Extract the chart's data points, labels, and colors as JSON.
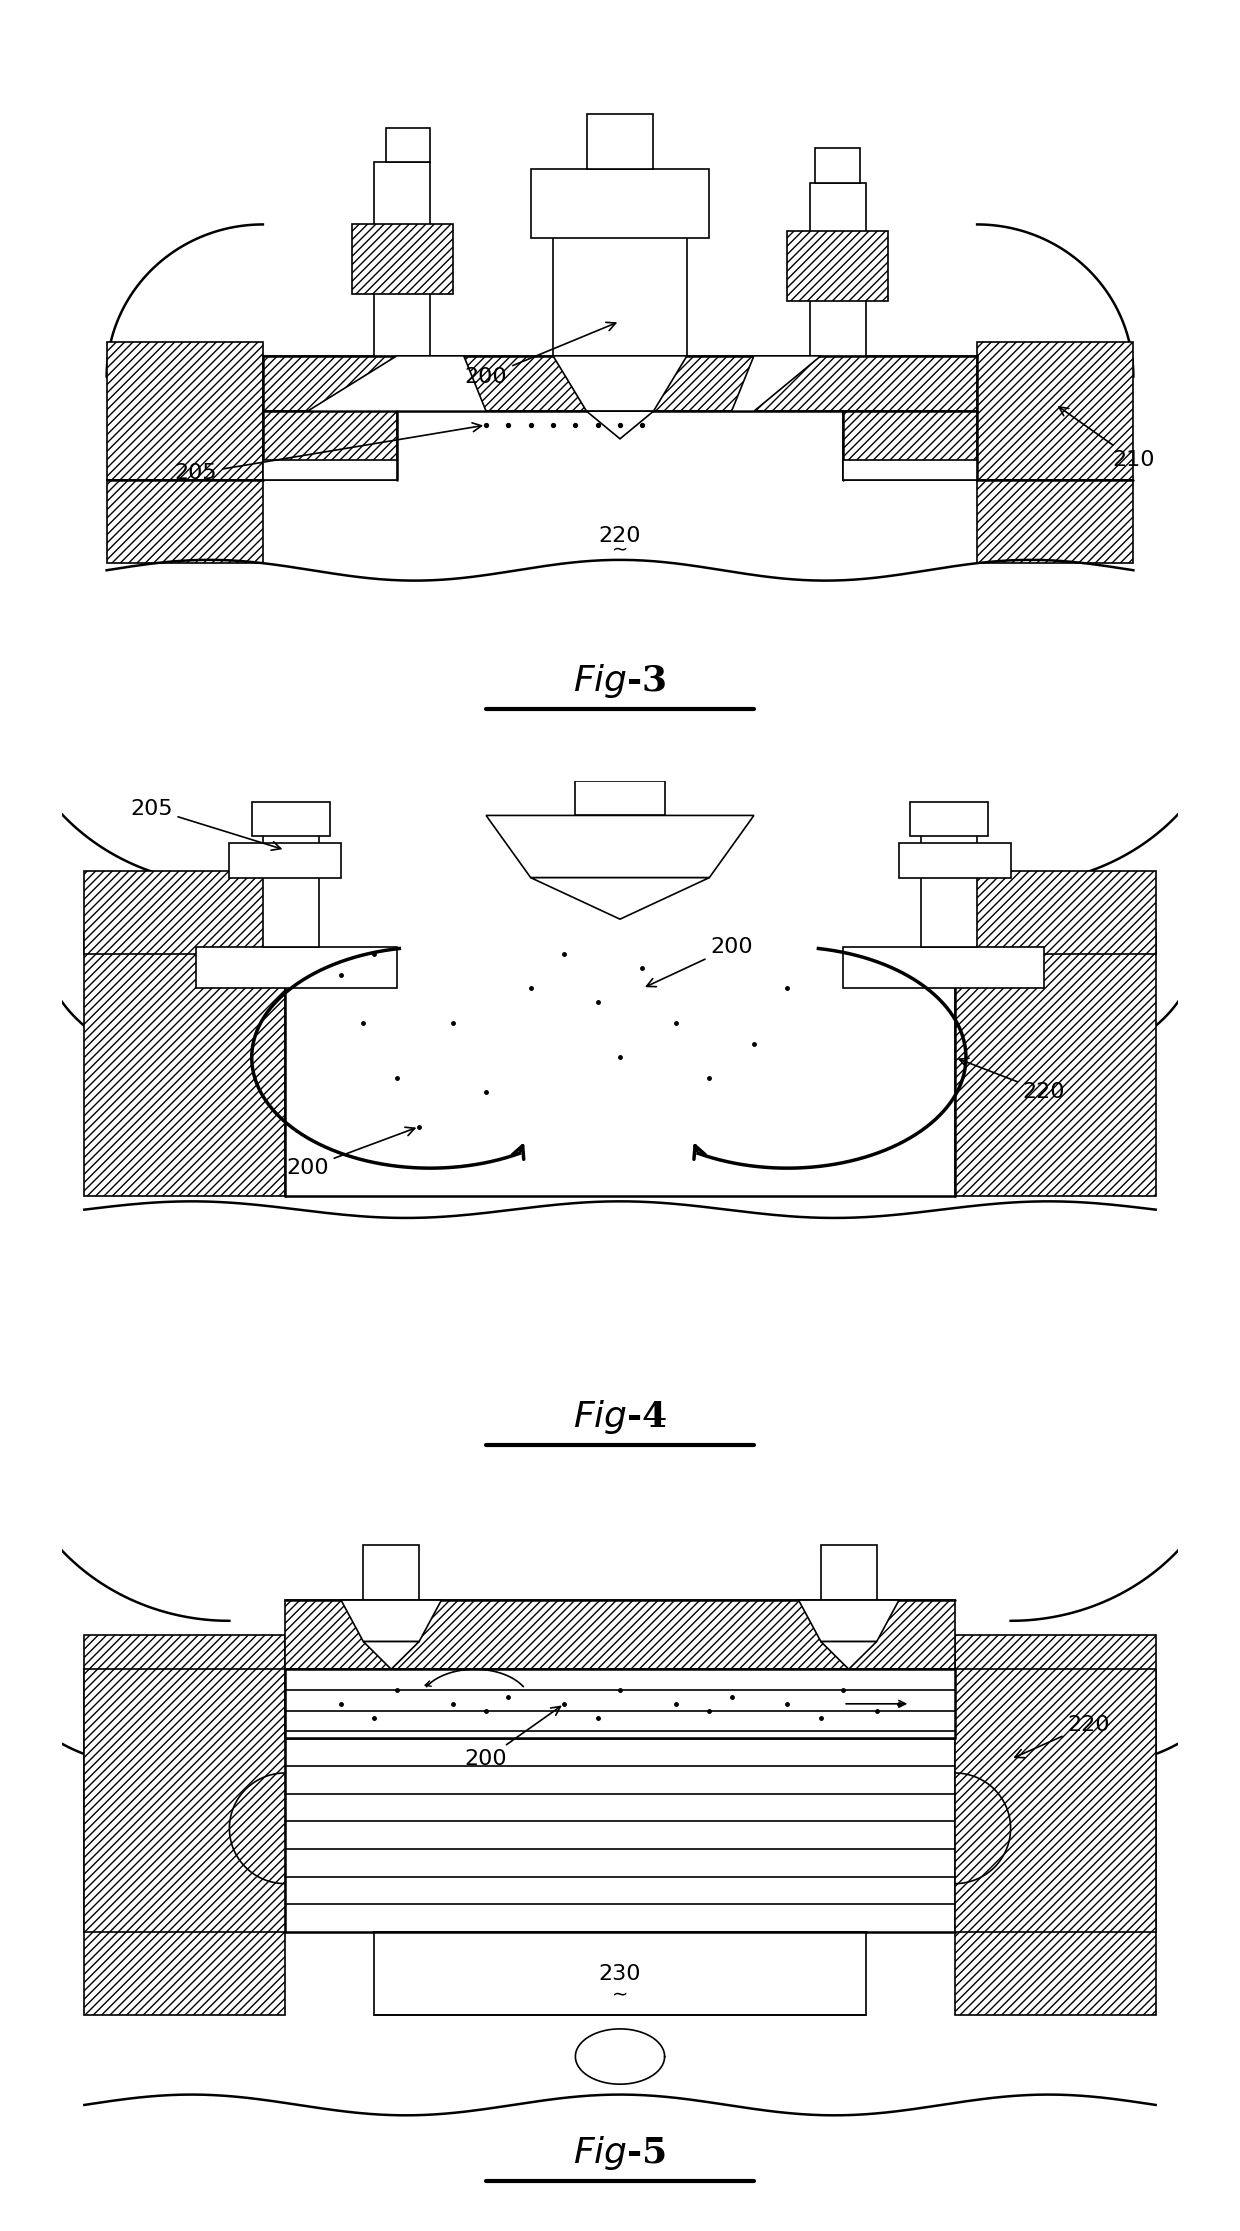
{
  "bg_color": "#ffffff",
  "line_color": "#000000",
  "fig_labels": [
    "Fig-3",
    "Fig-4",
    "Fig-5"
  ],
  "fig_label_fontsize": 26,
  "annotation_fontsize": 16,
  "hatch_pattern": "////",
  "dot_color": "#000000"
}
